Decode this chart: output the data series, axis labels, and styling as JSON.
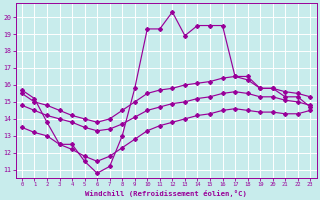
{
  "background_color": "#c8ecec",
  "grid_color": "#b8d8d8",
  "line_color": "#990099",
  "xlabel": "Windchill (Refroidissement éolien,°C)",
  "tick_color": "#990099",
  "xlim": [
    -0.5,
    23.5
  ],
  "ylim": [
    10.5,
    20.8
  ],
  "yticks": [
    11,
    12,
    13,
    14,
    15,
    16,
    17,
    18,
    19,
    20
  ],
  "xticks": [
    0,
    1,
    2,
    3,
    4,
    5,
    6,
    7,
    8,
    9,
    10,
    11,
    12,
    13,
    14,
    15,
    16,
    17,
    18,
    19,
    20,
    21,
    22,
    23
  ],
  "line1_x": [
    0,
    1,
    2,
    3,
    4,
    5,
    6,
    7,
    8,
    9,
    10,
    11,
    12,
    13,
    14,
    15,
    16,
    17,
    18,
    19,
    20,
    21,
    22,
    23
  ],
  "line1_y": [
    15.7,
    15.2,
    13.8,
    12.5,
    12.5,
    11.5,
    10.8,
    11.2,
    13.0,
    15.8,
    19.3,
    19.3,
    20.3,
    18.9,
    19.5,
    19.5,
    19.5,
    16.5,
    16.5,
    15.8,
    15.8,
    15.3,
    15.3,
    14.7
  ],
  "line2_x": [
    0,
    1,
    2,
    3,
    4,
    5,
    6,
    7,
    8,
    9,
    10,
    11,
    12,
    13,
    14,
    15,
    16,
    17,
    18,
    19,
    20,
    21,
    22,
    23
  ],
  "line2_y": [
    15.5,
    15.0,
    14.8,
    14.5,
    14.2,
    14.0,
    13.8,
    14.0,
    14.5,
    15.0,
    15.5,
    15.7,
    15.8,
    16.0,
    16.1,
    16.2,
    16.4,
    16.5,
    16.3,
    15.8,
    15.8,
    15.6,
    15.5,
    15.3
  ],
  "line3_x": [
    0,
    1,
    2,
    3,
    4,
    5,
    6,
    7,
    8,
    9,
    10,
    11,
    12,
    13,
    14,
    15,
    16,
    17,
    18,
    19,
    20,
    21,
    22,
    23
  ],
  "line3_y": [
    14.8,
    14.5,
    14.2,
    14.0,
    13.8,
    13.5,
    13.3,
    13.4,
    13.7,
    14.1,
    14.5,
    14.7,
    14.9,
    15.0,
    15.2,
    15.3,
    15.5,
    15.6,
    15.5,
    15.3,
    15.3,
    15.1,
    15.0,
    14.8
  ],
  "line4_x": [
    0,
    1,
    2,
    3,
    4,
    5,
    6,
    7,
    8,
    9,
    10,
    11,
    12,
    13,
    14,
    15,
    16,
    17,
    18,
    19,
    20,
    21,
    22,
    23
  ],
  "line4_y": [
    13.5,
    13.2,
    13.0,
    12.5,
    12.2,
    11.8,
    11.5,
    11.8,
    12.3,
    12.8,
    13.3,
    13.6,
    13.8,
    14.0,
    14.2,
    14.3,
    14.5,
    14.6,
    14.5,
    14.4,
    14.4,
    14.3,
    14.3,
    14.5
  ]
}
